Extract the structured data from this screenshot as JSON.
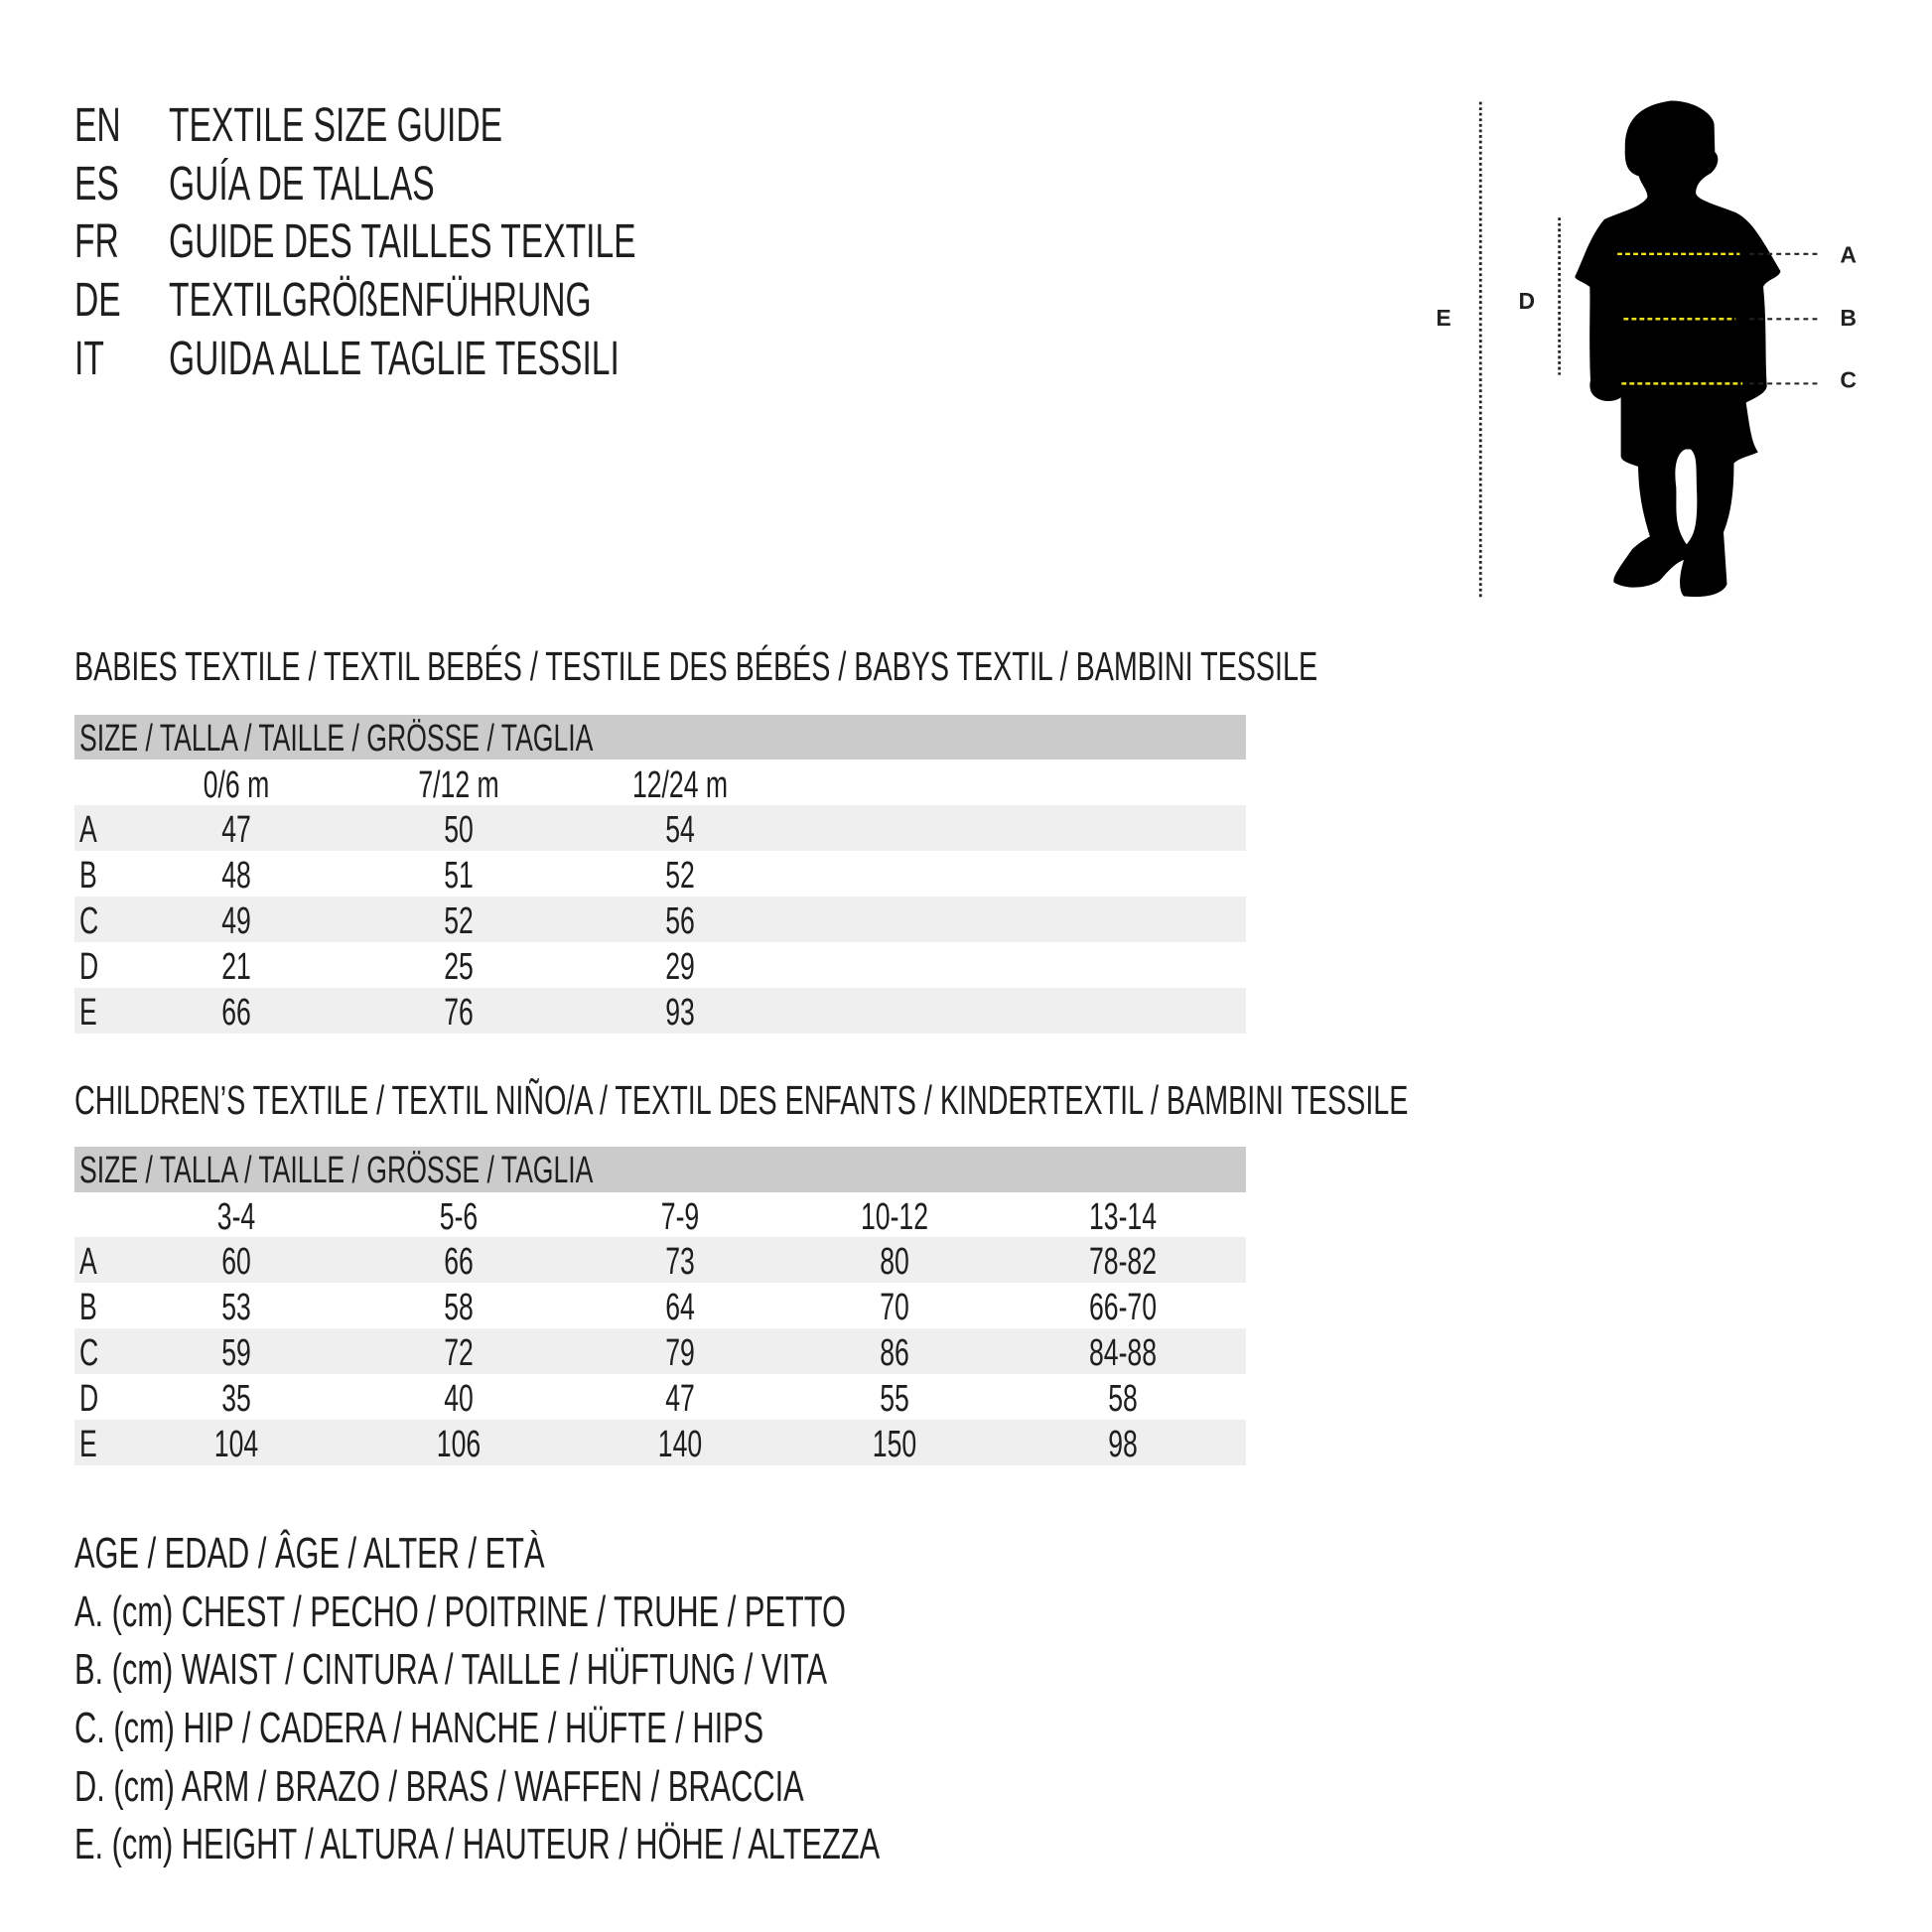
{
  "titles": [
    {
      "lang": "EN",
      "text": "TEXTILE SIZE GUIDE"
    },
    {
      "lang": "ES",
      "text": "GUÍA DE TALLAS"
    },
    {
      "lang": "FR",
      "text": "GUIDE DES TAILLES TEXTILE"
    },
    {
      "lang": "DE",
      "text": "TEXTILGRÖßENFÜHRUNG"
    },
    {
      "lang": "IT",
      "text": "GUIDA ALLE TAGLIE TESSILI"
    }
  ],
  "figure": {
    "labels": {
      "A": "A",
      "B": "B",
      "C": "C",
      "D": "D",
      "E": "E"
    },
    "highlight_color": "#f2e01c"
  },
  "babies": {
    "heading": "BABIES TEXTILE / TEXTIL BEBÉS / TESTILE DES BÉBÉS / BABYS TEXTIL / BAMBINI TESSILE",
    "size_header": "SIZE / TALLA / TAILLE / GRÖSSE / TAGLIA",
    "columns": [
      "0/6 m",
      "7/12 m",
      "12/24 m"
    ],
    "rows": [
      {
        "label": "A",
        "values": [
          "47",
          "50",
          "54"
        ]
      },
      {
        "label": "B",
        "values": [
          "48",
          "51",
          "52"
        ]
      },
      {
        "label": "C",
        "values": [
          "49",
          "52",
          "56"
        ]
      },
      {
        "label": "D",
        "values": [
          "21",
          "25",
          "29"
        ]
      },
      {
        "label": "E",
        "values": [
          "66",
          "76",
          "93"
        ]
      }
    ]
  },
  "children": {
    "heading": "CHILDREN’S TEXTILE / TEXTIL NIÑO/A / TEXTIL DES ENFANTS / KINDERTEXTIL / BAMBINI TESSILE",
    "size_header": "SIZE / TALLA / TAILLE / GRÖSSE / TAGLIA",
    "columns": [
      "3-4",
      "5-6",
      "7-9",
      "10-12",
      "13-14"
    ],
    "rows": [
      {
        "label": "A",
        "values": [
          "60",
          "66",
          "73",
          "80",
          "78-82"
        ]
      },
      {
        "label": "B",
        "values": [
          "53",
          "58",
          "64",
          "70",
          "66-70"
        ]
      },
      {
        "label": "C",
        "values": [
          "59",
          "72",
          "79",
          "86",
          "84-88"
        ]
      },
      {
        "label": "D",
        "values": [
          "35",
          "40",
          "47",
          "55",
          "58"
        ]
      },
      {
        "label": "E",
        "values": [
          "104",
          "106",
          "140",
          "150",
          "98"
        ]
      }
    ]
  },
  "legend": [
    "AGE / EDAD / ÂGE / ALTER / ETÀ",
    "A. (cm) CHEST / PECHO / POITRINE / TRUHE / PETTO",
    "B. (cm) WAIST / CINTURA / TAILLE / HÜFTUNG / VITA",
    "C. (cm) HIP / CADERA / HANCHE / HÜFTE / HIPS",
    "D. (cm) ARM / BRAZO / BRAS / WAFFEN / BRACCIA",
    "E. (cm) HEIGHT / ALTURA / HAUTEUR / HÖHE / ALTEZZA"
  ]
}
